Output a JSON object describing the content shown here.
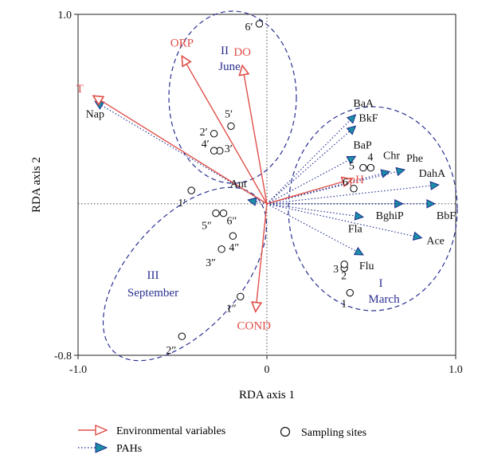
{
  "chart_data": {
    "type": "scatter",
    "subtype": "RDA triplot (biplot)",
    "xlabel": "RDA axis 1",
    "ylabel": "RDA axis 2",
    "xlim": [
      -1.0,
      1.0
    ],
    "ylim": [
      -0.8,
      1.0
    ],
    "x_ticks": [
      -1.0,
      0,
      1.0
    ],
    "x_tick_labels": [
      "-1.0",
      "0",
      "1.0"
    ],
    "y_ticks": [
      -0.8,
      1.0
    ],
    "y_tick_labels": [
      "-0.8",
      "1.0"
    ],
    "grid": false,
    "zero_lines": "dotted",
    "colors": {
      "environmental": "#e0504a",
      "pahs": "#1c2a8c",
      "pah_head": "#1a8fa6",
      "groups": "#2a3090",
      "sites": "#000000"
    },
    "environmental_variables": [
      {
        "name": "T",
        "x": -0.92,
        "y": 0.57
      },
      {
        "name": "ORP",
        "x": -0.45,
        "y": 0.78
      },
      {
        "name": "DO",
        "x": -0.13,
        "y": 0.73
      },
      {
        "name": "pH",
        "x": 0.45,
        "y": 0.13
      },
      {
        "name": "COND",
        "x": -0.06,
        "y": -0.57
      }
    ],
    "pahs": [
      {
        "name": "Nap",
        "x": -0.91,
        "y": 0.54
      },
      {
        "name": "Ant",
        "x": -0.1,
        "y": 0.02
      },
      {
        "name": "BaA",
        "x": 0.47,
        "y": 0.47
      },
      {
        "name": "BkF",
        "x": 0.47,
        "y": 0.41
      },
      {
        "name": "BaP",
        "x": 0.47,
        "y": 0.25
      },
      {
        "name": "Chr",
        "x": 0.65,
        "y": 0.17
      },
      {
        "name": "Phe",
        "x": 0.73,
        "y": 0.18
      },
      {
        "name": "DahA",
        "x": 0.91,
        "y": 0.1
      },
      {
        "name": "BghiP",
        "x": 0.72,
        "y": 0.0
      },
      {
        "name": "BbF",
        "x": 0.89,
        "y": 0.0
      },
      {
        "name": "Fla",
        "x": 0.51,
        "y": -0.07
      },
      {
        "name": "Ace",
        "x": 0.82,
        "y": -0.18
      },
      {
        "name": "Flu",
        "x": 0.51,
        "y": -0.27
      }
    ],
    "sampling_sites": [
      {
        "label": "1",
        "x": 0.44,
        "y": -0.47
      },
      {
        "label": "2",
        "x": 0.41,
        "y": -0.34
      },
      {
        "label": "3",
        "x": 0.41,
        "y": -0.32
      },
      {
        "label": "4",
        "x": 0.55,
        "y": 0.19
      },
      {
        "label": "5",
        "x": 0.51,
        "y": 0.19
      },
      {
        "label": "6",
        "x": 0.46,
        "y": 0.08
      },
      {
        "label": "1′",
        "x": -0.4,
        "y": 0.07
      },
      {
        "label": "2′",
        "x": -0.28,
        "y": 0.37
      },
      {
        "label": "3′",
        "x": -0.25,
        "y": 0.28
      },
      {
        "label": "4′",
        "x": -0.28,
        "y": 0.28
      },
      {
        "label": "5′",
        "x": -0.19,
        "y": 0.41
      },
      {
        "label": "6′",
        "x": -0.04,
        "y": 0.95
      },
      {
        "label": "1″",
        "x": -0.14,
        "y": -0.49
      },
      {
        "label": "2″",
        "x": -0.45,
        "y": -0.7
      },
      {
        "label": "3″",
        "x": -0.24,
        "y": -0.24
      },
      {
        "label": "4″",
        "x": -0.18,
        "y": -0.17
      },
      {
        "label": "5″",
        "x": -0.27,
        "y": -0.05
      },
      {
        "label": "6″",
        "x": -0.23,
        "y": -0.05
      }
    ],
    "groups": [
      {
        "roman": "I",
        "month": "March"
      },
      {
        "roman": "II",
        "month": "June"
      },
      {
        "roman": "III",
        "month": "September"
      }
    ],
    "legend": {
      "placement": "bottom",
      "items": [
        {
          "label": "Environmental variables",
          "symbol": "open-arrow"
        },
        {
          "label": "Sampling sites",
          "symbol": "open-circle"
        },
        {
          "label": "PAHs",
          "symbol": "dotted-filled-arrow"
        }
      ]
    }
  }
}
